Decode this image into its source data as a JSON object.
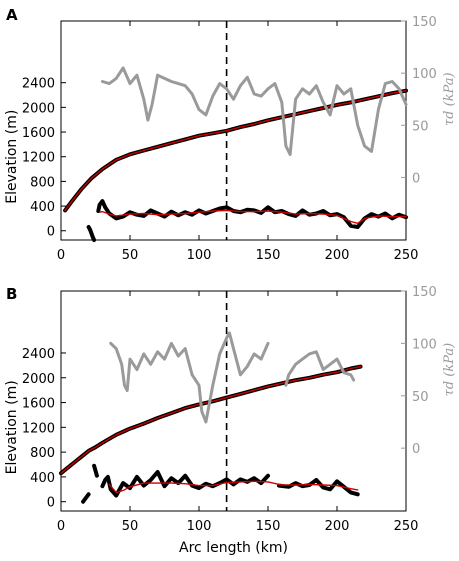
{
  "chart_data": [
    {
      "panel_label": "A",
      "type": "line",
      "xlabel": "",
      "ylabel": "Elevation (m)",
      "y2label": "τd (kPa)",
      "xlim": [
        0,
        250
      ],
      "ylim": [
        -150,
        3400
      ],
      "y2lim": [
        -60,
        150
      ],
      "xticks": [
        "0",
        "50",
        "100",
        "150",
        "200",
        "250"
      ],
      "yticks": [
        "0",
        "400",
        "800",
        "1200",
        "1600",
        "2000",
        "2400"
      ],
      "y2ticks": [
        "0",
        "50",
        "100",
        "150"
      ],
      "vline_x": 120,
      "series": [
        {
          "color": "#000000",
          "role": "surface elevation",
          "x": [
            3,
            8,
            15,
            22,
            30,
            40,
            50,
            60,
            70,
            80,
            90,
            100,
            110,
            120,
            130,
            140,
            150,
            160,
            170,
            180,
            190,
            200,
            210,
            220,
            230,
            240,
            250
          ],
          "y": [
            330,
            480,
            680,
            850,
            1000,
            1150,
            1240,
            1300,
            1360,
            1420,
            1480,
            1540,
            1580,
            1620,
            1680,
            1730,
            1790,
            1840,
            1890,
            1940,
            1990,
            2040,
            2080,
            2130,
            2180,
            2230,
            2270
          ]
        },
        {
          "color": "#cc0000",
          "role": "smoothed surface elevation",
          "x": [
            3,
            8,
            15,
            22,
            30,
            40,
            50,
            60,
            70,
            80,
            90,
            100,
            110,
            120,
            130,
            140,
            150,
            160,
            170,
            180,
            190,
            200,
            210,
            220,
            230,
            240,
            250
          ],
          "y": [
            330,
            480,
            680,
            850,
            1000,
            1150,
            1240,
            1300,
            1360,
            1420,
            1480,
            1540,
            1580,
            1620,
            1680,
            1730,
            1790,
            1840,
            1890,
            1940,
            1990,
            2040,
            2080,
            2130,
            2180,
            2230,
            2270
          ]
        },
        {
          "color": "#000000",
          "role": "bed elevation",
          "x": [
            20,
            21,
            22,
            23,
            24,
            null,
            27,
            28,
            30,
            32,
            35,
            40,
            45,
            50,
            55,
            60,
            65,
            70,
            75,
            80,
            85,
            90,
            95,
            100,
            105,
            110,
            115,
            120,
            125,
            130,
            135,
            140,
            145,
            150,
            155,
            160,
            165,
            170,
            175,
            180,
            185,
            190,
            195,
            200,
            205,
            210,
            215,
            220,
            225,
            230,
            235,
            240,
            245,
            250
          ],
          "y": [
            60,
            20,
            -40,
            -100,
            -150,
            null,
            320,
            420,
            480,
            380,
            280,
            200,
            230,
            300,
            260,
            240,
            330,
            280,
            230,
            310,
            250,
            300,
            260,
            330,
            280,
            320,
            360,
            380,
            320,
            300,
            340,
            330,
            290,
            380,
            300,
            320,
            270,
            240,
            330,
            260,
            280,
            320,
            250,
            270,
            220,
            80,
            60,
            200,
            270,
            230,
            280,
            200,
            260,
            220
          ]
        },
        {
          "color": "#cc0000",
          "role": "smoothed bed elevation",
          "x": [
            28,
            30,
            35,
            40,
            50,
            60,
            70,
            80,
            90,
            100,
            110,
            120,
            130,
            140,
            150,
            160,
            170,
            180,
            190,
            200,
            210,
            215,
            220,
            230,
            240,
            250
          ],
          "y": [
            300,
            310,
            270,
            240,
            270,
            280,
            260,
            270,
            280,
            300,
            320,
            330,
            310,
            310,
            320,
            300,
            270,
            280,
            270,
            250,
            150,
            120,
            200,
            240,
            230,
            230
          ]
        },
        {
          "color": "#9a9a9a",
          "role": "driving stress τd (right axis, kPa)",
          "x": [
            30,
            35,
            40,
            45,
            50,
            55,
            60,
            63,
            66,
            70,
            75,
            80,
            85,
            90,
            95,
            100,
            105,
            110,
            115,
            120,
            125,
            130,
            135,
            140,
            145,
            150,
            155,
            160,
            163,
            166,
            170,
            175,
            180,
            185,
            190,
            195,
            200,
            205,
            210,
            215,
            220,
            225,
            230,
            235,
            240,
            245,
            250
          ],
          "y": [
            92,
            90,
            95,
            105,
            90,
            98,
            75,
            55,
            70,
            98,
            95,
            92,
            90,
            88,
            80,
            65,
            60,
            78,
            90,
            85,
            75,
            88,
            96,
            80,
            78,
            85,
            90,
            72,
            30,
            22,
            75,
            85,
            80,
            88,
            72,
            60,
            88,
            80,
            85,
            50,
            30,
            25,
            65,
            90,
            92,
            85,
            70
          ]
        }
      ]
    },
    {
      "panel_label": "B",
      "type": "line",
      "xlabel": "Arc length (km)",
      "ylabel": "Elevation (m)",
      "y2label": "τd (kPa)",
      "xlim": [
        0,
        250
      ],
      "ylim": [
        -150,
        3400
      ],
      "y2lim": [
        -60,
        150
      ],
      "xticks": [
        "0",
        "50",
        "100",
        "150",
        "200",
        "250"
      ],
      "yticks": [
        "0",
        "400",
        "800",
        "1200",
        "1600",
        "2000",
        "2400"
      ],
      "y2ticks": [
        "0",
        "50",
        "100",
        "150"
      ],
      "vline_x": 120,
      "series": [
        {
          "color": "#000000",
          "role": "surface elevation",
          "x": [
            0,
            5,
            10,
            15,
            20,
            25,
            30,
            40,
            50,
            60,
            70,
            80,
            90,
            100,
            110,
            120,
            130,
            140,
            150,
            160,
            170,
            180,
            190,
            200,
            210,
            217
          ],
          "y": [
            460,
            550,
            640,
            730,
            820,
            880,
            950,
            1080,
            1180,
            1260,
            1350,
            1430,
            1510,
            1570,
            1620,
            1680,
            1740,
            1800,
            1860,
            1910,
            1960,
            2000,
            2050,
            2090,
            2150,
            2180
          ]
        },
        {
          "color": "#cc0000",
          "role": "smoothed surface elevation",
          "x": [
            0,
            5,
            10,
            15,
            20,
            25,
            30,
            40,
            50,
            60,
            70,
            80,
            90,
            100,
            110,
            120,
            130,
            140,
            150,
            160,
            170,
            180,
            190,
            200,
            210,
            217
          ],
          "y": [
            460,
            550,
            640,
            730,
            820,
            880,
            950,
            1080,
            1180,
            1260,
            1350,
            1430,
            1510,
            1570,
            1620,
            1680,
            1740,
            1800,
            1860,
            1910,
            1960,
            2000,
            2050,
            2090,
            2150,
            2180
          ]
        },
        {
          "color": "#000000",
          "role": "bed elevation",
          "x": [
            16,
            18,
            20,
            null,
            24,
            25,
            26,
            null,
            30,
            32,
            34,
            36,
            40,
            45,
            50,
            55,
            60,
            65,
            70,
            75,
            80,
            85,
            90,
            95,
            100,
            105,
            110,
            115,
            120,
            125,
            130,
            135,
            140,
            145,
            150,
            null,
            158,
            165,
            170,
            175,
            180,
            185,
            190,
            195,
            200,
            205,
            210,
            215
          ],
          "y": [
            0,
            60,
            120,
            null,
            580,
            500,
            420,
            null,
            250,
            350,
            400,
            200,
            100,
            300,
            220,
            400,
            260,
            350,
            480,
            250,
            380,
            300,
            420,
            260,
            220,
            290,
            250,
            300,
            360,
            280,
            360,
            320,
            380,
            300,
            420,
            null,
            260,
            240,
            300,
            250,
            270,
            350,
            230,
            200,
            330,
            240,
            150,
            120
          ]
        },
        {
          "color": "#cc0000",
          "role": "smoothed bed elevation",
          "x": [
            35,
            40,
            45,
            50,
            60,
            70,
            80,
            90,
            100,
            110,
            120,
            130,
            140,
            150,
            160,
            170,
            180,
            190,
            200,
            210,
            215
          ],
          "y": [
            280,
            150,
            180,
            240,
            300,
            300,
            300,
            290,
            260,
            260,
            310,
            320,
            330,
            320,
            270,
            270,
            280,
            270,
            260,
            210,
            190
          ]
        },
        {
          "color": "#9a9a9a",
          "role": "driving stress τd (right axis, kPa)",
          "x": [
            36,
            40,
            44,
            46,
            48,
            50,
            55,
            60,
            65,
            70,
            75,
            80,
            85,
            90,
            95,
            100,
            102,
            105,
            110,
            115,
            120,
            122,
            125,
            130,
            135,
            140,
            145,
            150,
            null,
            163,
            165,
            170,
            175,
            180,
            185,
            190,
            195,
            200,
            205,
            210,
            212
          ],
          "y": [
            100,
            95,
            80,
            60,
            55,
            85,
            75,
            90,
            80,
            92,
            85,
            100,
            88,
            95,
            70,
            60,
            35,
            25,
            60,
            90,
            105,
            110,
            95,
            70,
            78,
            90,
            85,
            100,
            null,
            60,
            70,
            80,
            85,
            90,
            92,
            75,
            80,
            85,
            72,
            70,
            65
          ]
        }
      ]
    }
  ]
}
